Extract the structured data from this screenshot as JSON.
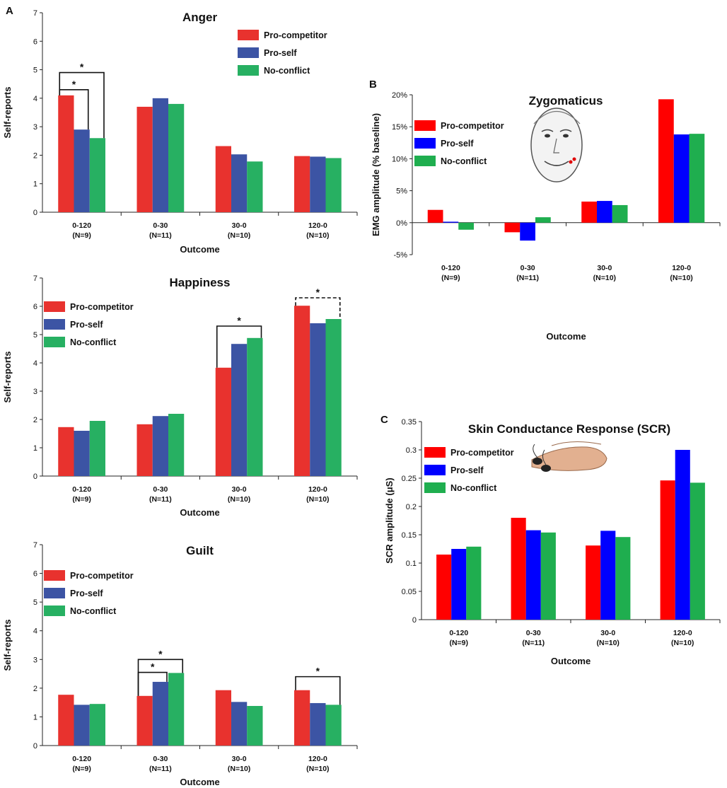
{
  "panels": [
    {
      "label": "A",
      "anchor": "anger"
    },
    {
      "label": "B",
      "anchor": "zyg"
    },
    {
      "label": "C",
      "anchor": "scr"
    }
  ],
  "colors": {
    "set_a": {
      "pro_competitor": "#e8322e",
      "pro_self": "#3c54a4",
      "no_conflict": "#27b062"
    },
    "set_bc": {
      "pro_competitor": "#ff0000",
      "pro_self": "#0000ff",
      "no_conflict": "#1fae4f"
    }
  },
  "chart_data": [
    {
      "id": "anger",
      "type": "bar",
      "colorset": "set_a",
      "title": "Anger",
      "xlabel": "Outcome",
      "ylabel": "Self-reports",
      "ylim": [
        0,
        7
      ],
      "yticks": [
        {
          "v": 0,
          "label": "0"
        },
        {
          "v": 1,
          "label": "1"
        },
        {
          "v": 2,
          "label": "2"
        },
        {
          "v": 3,
          "label": "3"
        },
        {
          "v": 4,
          "label": "4"
        },
        {
          "v": 5,
          "label": "5"
        },
        {
          "v": 6,
          "label": "6"
        },
        {
          "v": 7,
          "label": "7"
        }
      ],
      "categories": [
        {
          "name": "0-120",
          "n": "(N=9)"
        },
        {
          "name": "0-30",
          "n": "(N=11)"
        },
        {
          "name": "30-0",
          "n": "(N=10)"
        },
        {
          "name": "120-0",
          "n": "(N=10)"
        }
      ],
      "series": [
        {
          "name": "Pro-competitor",
          "key": "pro_competitor",
          "values": [
            4.1,
            3.7,
            2.32,
            1.97
          ]
        },
        {
          "name": "Pro-self",
          "key": "pro_self",
          "values": [
            2.9,
            4.0,
            2.03,
            1.95
          ]
        },
        {
          "name": "No-conflict",
          "key": "no_conflict",
          "values": [
            2.6,
            3.8,
            1.78,
            1.9
          ]
        }
      ],
      "legend": "top-right",
      "annotations": [
        {
          "category": 0,
          "from": 0,
          "to": 1,
          "level": 4.3,
          "label": "*",
          "dashed": false
        },
        {
          "category": 0,
          "from": 0,
          "to": 2,
          "level": 4.9,
          "label": "*",
          "dashed": false
        }
      ]
    },
    {
      "id": "happiness",
      "type": "bar",
      "colorset": "set_a",
      "title": "Happiness",
      "xlabel": "Outcome",
      "ylabel": "Self-reports",
      "ylim": [
        0,
        7
      ],
      "yticks": [
        {
          "v": 0,
          "label": "0"
        },
        {
          "v": 1,
          "label": "1"
        },
        {
          "v": 2,
          "label": "2"
        },
        {
          "v": 3,
          "label": "3"
        },
        {
          "v": 4,
          "label": "4"
        },
        {
          "v": 5,
          "label": "5"
        },
        {
          "v": 6,
          "label": "6"
        },
        {
          "v": 7,
          "label": "7"
        }
      ],
      "categories": [
        {
          "name": "0-120",
          "n": "(N=9)"
        },
        {
          "name": "0-30",
          "n": "(N=11)"
        },
        {
          "name": "30-0",
          "n": "(N=10)"
        },
        {
          "name": "120-0",
          "n": "(N=10)"
        }
      ],
      "series": [
        {
          "name": "Pro-competitor",
          "key": "pro_competitor",
          "values": [
            1.73,
            1.83,
            3.83,
            6.02
          ]
        },
        {
          "name": "Pro-self",
          "key": "pro_self",
          "values": [
            1.6,
            2.12,
            4.67,
            5.4
          ]
        },
        {
          "name": "No-conflict",
          "key": "no_conflict",
          "values": [
            1.95,
            2.2,
            4.88,
            5.55
          ]
        }
      ],
      "legend": "top-left",
      "annotations": [
        {
          "category": 2,
          "from": 0,
          "to": 2,
          "level": 5.3,
          "label": "*",
          "dashed": false
        },
        {
          "category": 3,
          "from": 0,
          "to": 2,
          "level": 6.3,
          "label": "*",
          "dashed": true
        }
      ]
    },
    {
      "id": "guilt",
      "type": "bar",
      "colorset": "set_a",
      "title": "Guilt",
      "xlabel": "Outcome",
      "ylabel": "Self-reports",
      "ylim": [
        0,
        7
      ],
      "yticks": [
        {
          "v": 0,
          "label": "0"
        },
        {
          "v": 1,
          "label": "1"
        },
        {
          "v": 2,
          "label": "2"
        },
        {
          "v": 3,
          "label": "3"
        },
        {
          "v": 4,
          "label": "4"
        },
        {
          "v": 5,
          "label": "5"
        },
        {
          "v": 6,
          "label": "6"
        },
        {
          "v": 7,
          "label": "7"
        }
      ],
      "categories": [
        {
          "name": "0-120",
          "n": "(N=9)"
        },
        {
          "name": "0-30",
          "n": "(N=11)"
        },
        {
          "name": "30-0",
          "n": "(N=10)"
        },
        {
          "name": "120-0",
          "n": "(N=10)"
        }
      ],
      "series": [
        {
          "name": "Pro-competitor",
          "key": "pro_competitor",
          "values": [
            1.77,
            1.73,
            1.93,
            1.93
          ]
        },
        {
          "name": "Pro-self",
          "key": "pro_self",
          "values": [
            1.42,
            2.22,
            1.52,
            1.48
          ]
        },
        {
          "name": "No-conflict",
          "key": "no_conflict",
          "values": [
            1.45,
            2.53,
            1.38,
            1.42
          ]
        }
      ],
      "legend": "top-left",
      "annotations": [
        {
          "category": 1,
          "from": 0,
          "to": 1,
          "level": 2.55,
          "label": "*",
          "dashed": false
        },
        {
          "category": 1,
          "from": 0,
          "to": 2,
          "level": 3.0,
          "label": "*",
          "dashed": false
        },
        {
          "category": 3,
          "from": 0,
          "to": 2,
          "level": 2.4,
          "label": "*",
          "dashed": false
        }
      ]
    },
    {
      "id": "zyg",
      "type": "bar",
      "colorset": "set_bc",
      "title": "Zygomaticus",
      "xlabel": "Outcome",
      "ylabel": "EMG amplitude (% baseline)",
      "ylim": [
        -5,
        20
      ],
      "yticks": [
        {
          "v": -5,
          "label": "-5%"
        },
        {
          "v": 0,
          "label": "0%"
        },
        {
          "v": 5,
          "label": "5%"
        },
        {
          "v": 10,
          "label": "10%"
        },
        {
          "v": 15,
          "label": "15%"
        },
        {
          "v": 20,
          "label": "20%"
        }
      ],
      "categories": [
        {
          "name": "0-120",
          "n": "(N=9)"
        },
        {
          "name": "0-30",
          "n": "(N=11)"
        },
        {
          "name": "30-0",
          "n": "(N=10)"
        },
        {
          "name": "120-0",
          "n": "(N=10)"
        }
      ],
      "series": [
        {
          "name": "Pro-competitor",
          "key": "pro_competitor",
          "values": [
            2.0,
            -1.5,
            3.3,
            19.3
          ]
        },
        {
          "name": "Pro-self",
          "key": "pro_self",
          "values": [
            0.15,
            -2.8,
            3.4,
            13.8
          ]
        },
        {
          "name": "No-conflict",
          "key": "no_conflict",
          "values": [
            -1.1,
            0.85,
            2.75,
            13.9
          ]
        }
      ],
      "legend": "top-left",
      "annotations": []
    },
    {
      "id": "scr",
      "type": "bar",
      "colorset": "set_bc",
      "title": "Skin Conductance Response (SCR)",
      "xlabel": "Outcome",
      "ylabel": "SCR amplitude (μS)",
      "ylim": [
        0,
        0.35
      ],
      "yticks": [
        {
          "v": 0,
          "label": "0"
        },
        {
          "v": 0.05,
          "label": "0.05"
        },
        {
          "v": 0.1,
          "label": "0.1"
        },
        {
          "v": 0.15,
          "label": "0.15"
        },
        {
          "v": 0.2,
          "label": "0.2"
        },
        {
          "v": 0.25,
          "label": "0.25"
        },
        {
          "v": 0.3,
          "label": "0.3"
        },
        {
          "v": 0.35,
          "label": "0.35"
        }
      ],
      "categories": [
        {
          "name": "0-120",
          "n": "(N=9)"
        },
        {
          "name": "0-30",
          "n": "(N=11)"
        },
        {
          "name": "30-0",
          "n": "(N=10)"
        },
        {
          "name": "120-0",
          "n": "(N=10)"
        }
      ],
      "series": [
        {
          "name": "Pro-competitor",
          "key": "pro_competitor",
          "values": [
            0.115,
            0.18,
            0.131,
            0.246
          ]
        },
        {
          "name": "Pro-self",
          "key": "pro_self",
          "values": [
            0.125,
            0.158,
            0.157,
            0.3
          ]
        },
        {
          "name": "No-conflict",
          "key": "no_conflict",
          "values": [
            0.129,
            0.154,
            0.146,
            0.242
          ]
        }
      ],
      "legend": "top-left",
      "annotations": []
    }
  ]
}
